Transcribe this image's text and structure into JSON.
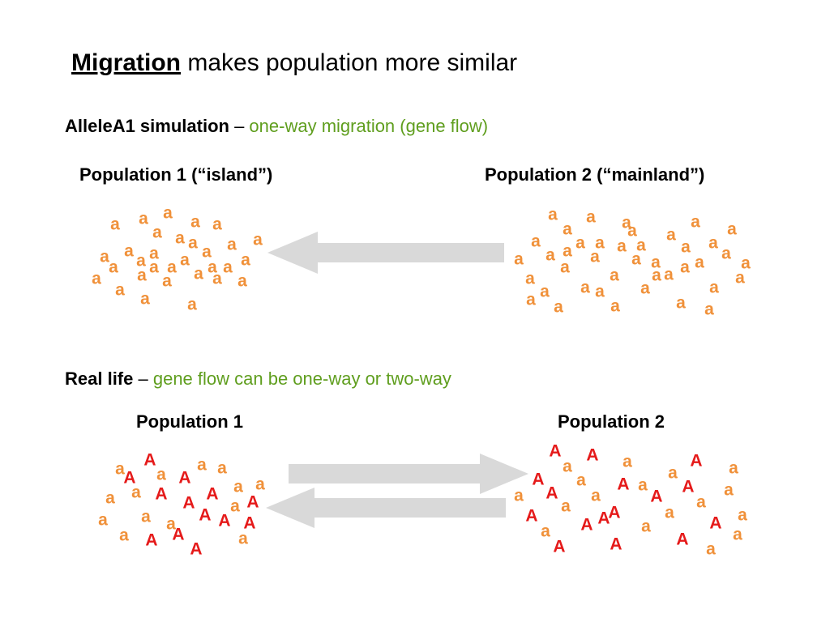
{
  "title": {
    "keyword": "Migration",
    "rest": " makes population more similar"
  },
  "simulation": {
    "heading_bold": "AlleleA1 simulation",
    "dash": " – ",
    "heading_green": "one-way migration (gene flow)",
    "pop1_label": "Population 1 (“island”)",
    "pop2_label": "Population 2 (“mainland”)"
  },
  "real_life": {
    "heading_bold": "Real life",
    "dash": " – ",
    "heading_green": "gene flow can be one-way or two-way",
    "pop1_label": "Population 1",
    "pop2_label": "Population 2"
  },
  "colors": {
    "recessive_allele": "#f0913a",
    "dominant_allele": "#e51a1a",
    "arrow": "#d9d9d9",
    "heading_green": "#5f9e1e"
  },
  "clusters": {
    "sim_pop1": "aaaaaaaaaaaaaaaaaaaaaaaaaaaaaaa",
    "sim_pop2": "aaaaaaaaaaaaaaaaaaaaaaaaaaaaaaaaaaaaaaaaa",
    "real_pop1": "aAaAaaaAaAAaaAaaAAAaaAAAaAa",
    "real_pop2": "AaAaAaaAaAaAAaaAaaAaAaAaAaAAAaaAa"
  }
}
